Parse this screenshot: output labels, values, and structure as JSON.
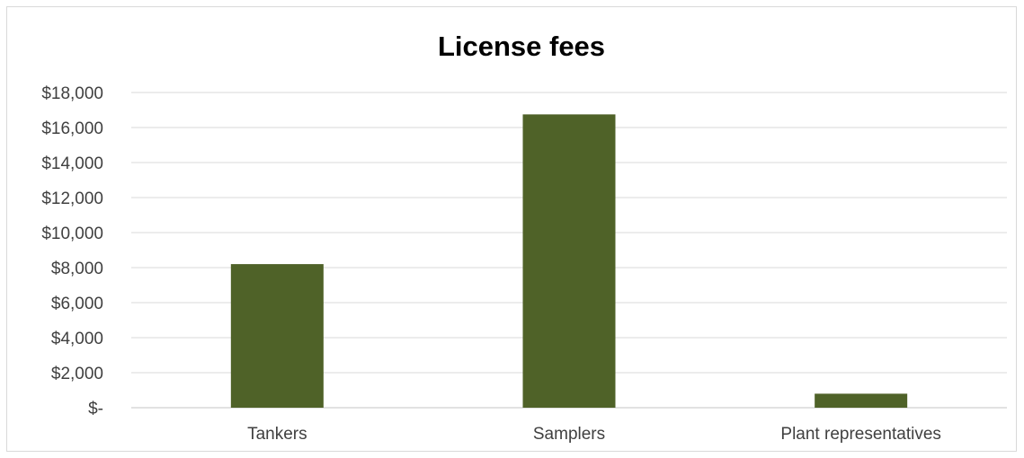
{
  "chart_data": {
    "type": "bar",
    "title": "License fees",
    "xlabel": "",
    "ylabel": "",
    "categories": [
      "Tankers",
      "Samplers",
      "Plant representatives"
    ],
    "series": [
      {
        "values": [
          8200,
          16750,
          800
        ],
        "color": "#4f6228"
      }
    ],
    "ylim": [
      0,
      18000
    ],
    "yticks": [
      0,
      2000,
      4000,
      6000,
      8000,
      10000,
      12000,
      14000,
      16000,
      18000
    ],
    "ytick_labels": [
      "$-",
      "$2,000",
      "$4,000",
      "$6,000",
      "$8,000",
      "$10,000",
      "$12,000",
      "$14,000",
      "$16,000",
      "$18,000"
    ],
    "grid": true,
    "gridline_color": "#d9d9d9",
    "legend": "none"
  }
}
